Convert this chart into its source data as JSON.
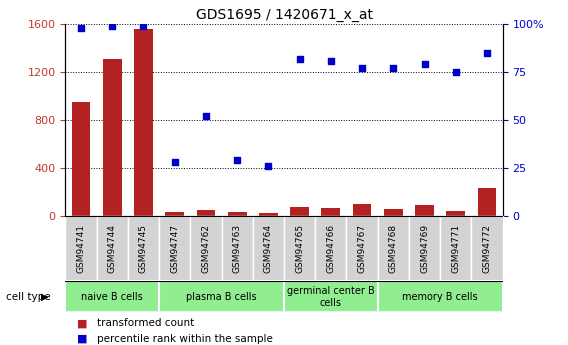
{
  "title": "GDS1695 / 1420671_x_at",
  "samples": [
    "GSM94741",
    "GSM94744",
    "GSM94745",
    "GSM94747",
    "GSM94762",
    "GSM94763",
    "GSM94764",
    "GSM94765",
    "GSM94766",
    "GSM94767",
    "GSM94768",
    "GSM94769",
    "GSM94771",
    "GSM94772"
  ],
  "transformed_count": [
    950,
    1310,
    1560,
    30,
    45,
    30,
    25,
    75,
    60,
    100,
    55,
    90,
    35,
    230
  ],
  "percentile_rank": [
    98,
    99,
    99,
    28,
    52,
    29,
    26,
    82,
    81,
    77,
    77,
    79,
    75,
    85
  ],
  "group_boundaries": [
    0,
    3,
    7,
    10,
    14
  ],
  "group_labels": [
    "naive B cells",
    "plasma B cells",
    "germinal center B\ncells",
    "memory B cells"
  ],
  "group_colors": [
    "#90EE90",
    "#90EE90",
    "#90EE90",
    "#90EE90"
  ],
  "ylim_left": [
    0,
    1600
  ],
  "ylim_right": [
    0,
    100
  ],
  "yticks_left": [
    0,
    400,
    800,
    1200,
    1600
  ],
  "yticks_right": [
    0,
    25,
    50,
    75,
    100
  ],
  "bar_color": "#B22222",
  "dot_color": "#0000CD",
  "bg_color": "#FFFFFF",
  "grid_color": "#000000",
  "tick_label_color_left": "#C0392B",
  "tick_label_color_right": "#0000CD",
  "cell_type_label": "cell type",
  "sample_box_color": "#D3D3D3",
  "legend_bar_label": "transformed count",
  "legend_dot_label": "percentile rank within the sample"
}
